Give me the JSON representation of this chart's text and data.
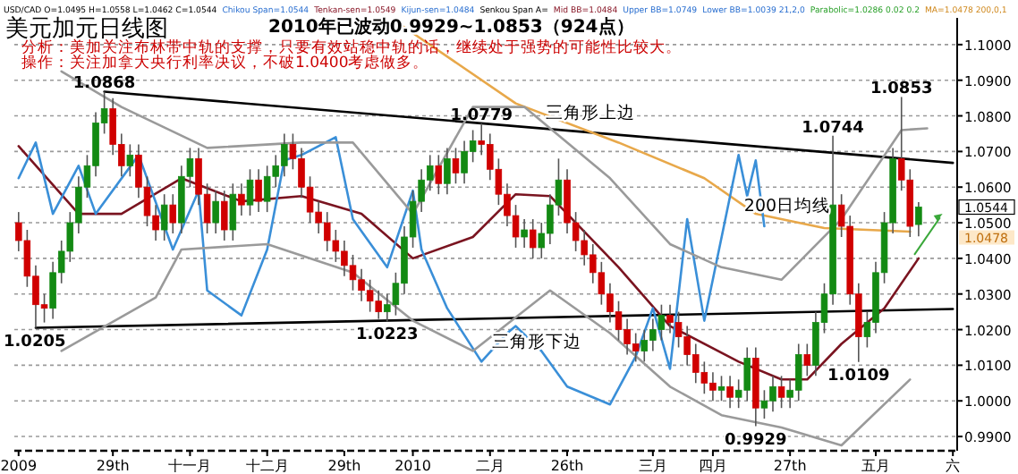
{
  "chart_data": {
    "type": "candlestick",
    "title": "美元加元日线图",
    "subtitle": "2010年已波动0.9929~1.0853（924点）",
    "categories": [
      "2009",
      null,
      null,
      null,
      null,
      null,
      null,
      null,
      null,
      null,
      null,
      "29th",
      null,
      null,
      null,
      null,
      null,
      null,
      null,
      null,
      "十一月",
      null,
      null,
      null,
      null,
      null,
      null,
      null,
      null,
      "十二月",
      null,
      null,
      null,
      null,
      null,
      null,
      null,
      null,
      "29th",
      null,
      null,
      null,
      null,
      null,
      null,
      null,
      "2010",
      null,
      null,
      null,
      null,
      null,
      null,
      null,
      null,
      "二月",
      null,
      null,
      null,
      null,
      null,
      null,
      null,
      null,
      "26th",
      null,
      null,
      null,
      null,
      null,
      null,
      null,
      null,
      null,
      "三月",
      null,
      null,
      null,
      null,
      null,
      null,
      "四月",
      null,
      null,
      null,
      null,
      null,
      null,
      null,
      null,
      "27th",
      null,
      null,
      null,
      null,
      null,
      null,
      null,
      null,
      null,
      "五月",
      null,
      null,
      null,
      null,
      null,
      null,
      null,
      null,
      "六"
    ],
    "ohlc": [
      [
        1.05,
        1.053,
        1.042,
        1.045
      ],
      [
        1.045,
        1.048,
        1.032,
        1.035
      ],
      [
        1.035,
        1.038,
        1.0205,
        1.027
      ],
      [
        1.027,
        1.03,
        1.022,
        1.026
      ],
      [
        1.026,
        1.039,
        1.023,
        1.036
      ],
      [
        1.036,
        1.045,
        1.033,
        1.042
      ],
      [
        1.042,
        1.053,
        1.039,
        1.05
      ],
      [
        1.05,
        1.063,
        1.047,
        1.06
      ],
      [
        1.06,
        1.069,
        1.057,
        1.066
      ],
      [
        1.066,
        1.081,
        1.063,
        1.078
      ],
      [
        1.078,
        1.0868,
        1.075,
        1.082
      ],
      [
        1.082,
        1.085,
        1.069,
        1.072
      ],
      [
        1.072,
        1.075,
        1.063,
        1.066
      ],
      [
        1.066,
        1.072,
        1.063,
        1.069
      ],
      [
        1.069,
        1.072,
        1.057,
        1.06
      ],
      [
        1.06,
        1.063,
        1.049,
        1.052
      ],
      [
        1.052,
        1.055,
        1.045,
        1.048
      ],
      [
        1.048,
        1.058,
        1.045,
        1.055
      ],
      [
        1.055,
        1.058,
        1.047,
        1.05
      ],
      [
        1.05,
        1.066,
        1.047,
        1.063
      ],
      [
        1.063,
        1.071,
        1.06,
        1.068
      ],
      [
        1.068,
        1.071,
        1.055,
        1.058
      ],
      [
        1.058,
        1.061,
        1.047,
        1.05
      ],
      [
        1.05,
        1.059,
        1.047,
        1.056
      ],
      [
        1.056,
        1.059,
        1.045,
        1.048
      ],
      [
        1.048,
        1.061,
        1.045,
        1.058
      ],
      [
        1.058,
        1.061,
        1.052,
        1.055
      ],
      [
        1.055,
        1.065,
        1.052,
        1.062
      ],
      [
        1.062,
        1.065,
        1.053,
        1.056
      ],
      [
        1.056,
        1.066,
        1.053,
        1.063
      ],
      [
        1.063,
        1.069,
        1.06,
        1.066
      ],
      [
        1.066,
        1.075,
        1.063,
        1.072
      ],
      [
        1.072,
        1.075,
        1.065,
        1.068
      ],
      [
        1.068,
        1.071,
        1.057,
        1.06
      ],
      [
        1.06,
        1.063,
        1.05,
        1.053
      ],
      [
        1.053,
        1.056,
        1.047,
        1.05
      ],
      [
        1.05,
        1.053,
        1.042,
        1.045
      ],
      [
        1.045,
        1.048,
        1.039,
        1.042
      ],
      [
        1.042,
        1.045,
        1.035,
        1.038
      ],
      [
        1.038,
        1.041,
        1.031,
        1.034
      ],
      [
        1.034,
        1.037,
        1.028,
        1.031
      ],
      [
        1.031,
        1.034,
        1.025,
        1.028
      ],
      [
        1.028,
        1.031,
        1.023,
        1.025
      ],
      [
        1.025,
        1.03,
        1.0223,
        1.027
      ],
      [
        1.027,
        1.036,
        1.024,
        1.033
      ],
      [
        1.033,
        1.049,
        1.03,
        1.046
      ],
      [
        1.046,
        1.059,
        1.043,
        1.056
      ],
      [
        1.056,
        1.065,
        1.053,
        1.062
      ],
      [
        1.062,
        1.069,
        1.059,
        1.066
      ],
      [
        1.066,
        1.069,
        1.058,
        1.061
      ],
      [
        1.061,
        1.071,
        1.058,
        1.068
      ],
      [
        1.068,
        1.071,
        1.061,
        1.064
      ],
      [
        1.064,
        1.073,
        1.061,
        1.07
      ],
      [
        1.07,
        1.076,
        1.067,
        1.073
      ],
      [
        1.073,
        1.0779,
        1.069,
        1.072
      ],
      [
        1.072,
        1.075,
        1.062,
        1.065
      ],
      [
        1.065,
        1.068,
        1.055,
        1.058
      ],
      [
        1.058,
        1.061,
        1.049,
        1.052
      ],
      [
        1.052,
        1.055,
        1.043,
        1.046
      ],
      [
        1.046,
        1.051,
        1.043,
        1.048
      ],
      [
        1.048,
        1.051,
        1.04,
        1.043
      ],
      [
        1.043,
        1.05,
        1.04,
        1.047
      ],
      [
        1.047,
        1.058,
        1.044,
        1.055
      ],
      [
        1.055,
        1.068,
        1.052,
        1.062
      ],
      [
        1.062,
        1.065,
        1.047,
        1.05
      ],
      [
        1.05,
        1.053,
        1.042,
        1.045
      ],
      [
        1.045,
        1.048,
        1.038,
        1.041
      ],
      [
        1.041,
        1.044,
        1.033,
        1.036
      ],
      [
        1.036,
        1.039,
        1.027,
        1.03
      ],
      [
        1.03,
        1.033,
        1.022,
        1.025
      ],
      [
        1.025,
        1.028,
        1.017,
        1.02
      ],
      [
        1.02,
        1.023,
        1.013,
        1.016
      ],
      [
        1.016,
        1.019,
        1.011,
        1.014
      ],
      [
        1.014,
        1.02,
        1.011,
        1.017
      ],
      [
        1.017,
        1.023,
        1.014,
        1.02
      ],
      [
        1.02,
        1.027,
        1.017,
        1.024
      ],
      [
        1.024,
        1.027,
        1.019,
        1.022
      ],
      [
        1.022,
        1.025,
        1.015,
        1.018
      ],
      [
        1.018,
        1.021,
        1.01,
        1.013
      ],
      [
        1.013,
        1.016,
        1.005,
        1.008
      ],
      [
        1.008,
        1.011,
        1.002,
        1.005
      ],
      [
        1.005,
        1.008,
        1.0,
        1.003
      ],
      [
        1.003,
        1.007,
        1.0,
        1.004
      ],
      [
        1.004,
        1.007,
        0.998,
        1.001
      ],
      [
        1.001,
        1.006,
        0.998,
        1.003
      ],
      [
        1.003,
        1.015,
        1.0,
        1.012
      ],
      [
        1.012,
        1.015,
        0.9929,
        0.998
      ],
      [
        0.998,
        1.003,
        0.995,
        1.0
      ],
      [
        1.0,
        1.007,
        0.997,
        1.004
      ],
      [
        1.004,
        1.007,
        0.998,
        1.001
      ],
      [
        1.001,
        1.006,
        0.998,
        1.003
      ],
      [
        1.003,
        1.016,
        1.0,
        1.013
      ],
      [
        1.013,
        1.016,
        1.007,
        1.01
      ],
      [
        1.01,
        1.025,
        1.007,
        1.022
      ],
      [
        1.022,
        1.033,
        1.019,
        1.03
      ],
      [
        1.03,
        1.0744,
        1.027,
        1.055
      ],
      [
        1.055,
        1.058,
        1.046,
        1.049
      ],
      [
        1.049,
        1.052,
        1.027,
        1.03
      ],
      [
        1.03,
        1.033,
        1.0109,
        1.018
      ],
      [
        1.018,
        1.025,
        1.015,
        1.022
      ],
      [
        1.022,
        1.039,
        1.019,
        1.036
      ],
      [
        1.036,
        1.053,
        1.033,
        1.05
      ],
      [
        1.05,
        1.071,
        1.047,
        1.068
      ],
      [
        1.068,
        1.0853,
        1.059,
        1.062
      ],
      [
        1.062,
        1.065,
        1.046,
        1.049
      ],
      [
        1.0495,
        1.0558,
        1.0462,
        1.0544
      ],
      null,
      null,
      null,
      null
    ],
    "series": [
      {
        "type": "line",
        "color": "#000000",
        "values": [
          null,
          null,
          1.0205,
          null,
          null,
          null,
          null,
          null,
          null,
          null,
          null,
          null,
          null,
          null,
          null,
          null,
          null,
          null,
          null,
          null,
          null,
          null,
          null,
          null,
          null,
          null,
          null,
          null,
          null,
          null,
          null,
          null,
          null,
          null,
          null,
          null,
          null,
          null,
          null,
          null,
          null,
          null,
          null,
          null,
          null,
          null,
          null,
          null,
          null,
          null,
          null,
          null,
          null,
          null,
          null,
          null,
          null,
          null,
          null,
          null,
          null,
          null,
          null,
          null,
          null,
          null,
          null,
          null,
          null,
          null,
          null,
          null,
          null,
          null,
          null,
          null,
          null,
          null,
          null,
          null,
          null,
          null,
          null,
          null,
          null,
          null,
          null,
          null,
          null,
          null,
          null,
          null,
          null,
          null,
          null,
          null,
          null,
          null,
          null,
          null,
          null,
          null,
          null,
          null,
          null,
          null,
          null,
          null,
          null,
          1.0258
        ]
      },
      {
        "type": "line",
        "color": "#000000",
        "values": [
          null,
          null,
          null,
          null,
          null,
          null,
          null,
          null,
          null,
          null,
          1.0868,
          null,
          null,
          null,
          null,
          null,
          null,
          null,
          null,
          null,
          null,
          null,
          null,
          null,
          null,
          null,
          null,
          null,
          null,
          null,
          null,
          null,
          null,
          null,
          null,
          null,
          null,
          null,
          null,
          null,
          null,
          null,
          null,
          null,
          null,
          null,
          null,
          null,
          null,
          null,
          null,
          null,
          null,
          null,
          null,
          null,
          null,
          null,
          null,
          null,
          null,
          null,
          null,
          null,
          null,
          null,
          null,
          null,
          null,
          null,
          null,
          null,
          null,
          null,
          null,
          null,
          null,
          null,
          null,
          null,
          null,
          null,
          null,
          null,
          null,
          null,
          null,
          null,
          null,
          null,
          null,
          null,
          null,
          null,
          null,
          null,
          null,
          null,
          null,
          null,
          null,
          null,
          null,
          null,
          null,
          null,
          null,
          null,
          null,
          1.0668
        ]
      },
      {
        "type": "line",
        "color": "#e8a84a",
        "values": [
          null,
          null,
          null,
          null,
          null,
          null,
          null,
          null,
          null,
          null,
          null,
          null,
          null,
          null,
          null,
          null,
          null,
          null,
          null,
          null,
          null,
          null,
          null,
          null,
          null,
          null,
          null,
          null,
          null,
          null,
          null,
          null,
          null,
          null,
          null,
          null,
          null,
          null,
          null,
          null,
          null,
          null,
          null,
          null,
          1.1065,
          null,
          null,
          null,
          null,
          null,
          null,
          null,
          null,
          null,
          null,
          null,
          null,
          null,
          1.0835,
          null,
          null,
          null,
          null,
          null,
          null,
          null,
          null,
          null,
          null,
          null,
          1.0725,
          null,
          null,
          null,
          null,
          null,
          null,
          null,
          null,
          null,
          1.0625,
          null,
          null,
          null,
          null,
          null,
          1.0525,
          null,
          null,
          null,
          null,
          null,
          null,
          null,
          1.0485,
          null,
          null,
          null,
          null,
          null,
          null,
          null,
          null,
          null,
          1.0475,
          null,
          null,
          null,
          null,
          null
        ]
      },
      {
        "type": "line",
        "color": "#7a1420",
        "values": [
          1.0715,
          null,
          null,
          null,
          null,
          null,
          null,
          1.0525,
          null,
          null,
          null,
          null,
          1.0525,
          null,
          null,
          null,
          null,
          null,
          null,
          1.0625,
          null,
          null,
          null,
          null,
          null,
          null,
          1.056,
          null,
          null,
          null,
          null,
          null,
          null,
          1.0575,
          null,
          null,
          null,
          null,
          null,
          null,
          1.0525,
          null,
          null,
          null,
          null,
          null,
          1.04,
          null,
          null,
          null,
          null,
          null,
          null,
          1.046,
          null,
          null,
          null,
          null,
          1.058,
          null,
          null,
          null,
          1.0575,
          null,
          null,
          null,
          null,
          null,
          null,
          null,
          1.0375,
          null,
          null,
          null,
          null,
          null,
          1.021,
          null,
          null,
          null,
          null,
          null,
          null,
          null,
          1.011,
          null,
          null,
          null,
          null,
          1.006,
          null,
          null,
          1.006,
          null,
          null,
          null,
          1.016,
          null,
          null,
          null,
          null,
          1.026,
          null,
          null,
          null,
          1.04,
          null,
          null,
          null,
          null
        ]
      },
      {
        "type": "line",
        "color": "#3a8fd8",
        "values": [
          1.0625,
          null,
          1.0725,
          null,
          1.0525,
          null,
          null,
          1.066,
          null,
          1.0525,
          null,
          null,
          null,
          null,
          1.069,
          null,
          null,
          null,
          1.0425,
          null,
          null,
          1.059,
          1.031,
          null,
          null,
          null,
          1.024,
          null,
          null,
          1.0425,
          null,
          1.0675,
          null,
          1.069,
          null,
          null,
          null,
          1.074,
          null,
          1.051,
          null,
          null,
          null,
          1.0375,
          null,
          null,
          1.059,
          1.0425,
          null,
          null,
          1.026,
          null,
          null,
          null,
          1.011,
          null,
          null,
          1.019,
          1.021,
          null,
          null,
          1.014,
          null,
          null,
          1.004,
          null,
          null,
          null,
          null,
          0.999,
          null,
          null,
          1.0125,
          null,
          1.026,
          null,
          1.009,
          null,
          1.051,
          null,
          1.0225,
          null,
          null,
          null,
          1.069,
          1.0575,
          1.0675,
          1.049,
          null,
          null,
          null,
          null,
          null,
          null,
          null,
          null,
          null,
          null,
          null,
          null,
          null,
          null,
          null,
          null,
          null,
          null,
          null,
          null,
          null,
          null
        ]
      },
      {
        "type": "line",
        "color": "#9a9a9a",
        "values": [
          null,
          null,
          null,
          null,
          null,
          1.0925,
          null,
          null,
          null,
          null,
          null,
          null,
          1.0825,
          null,
          null,
          null,
          null,
          null,
          null,
          null,
          null,
          null,
          1.071,
          null,
          null,
          null,
          null,
          null,
          null,
          null,
          null,
          null,
          null,
          1.0725,
          null,
          null,
          null,
          null,
          null,
          1.0725,
          null,
          null,
          null,
          null,
          null,
          null,
          1.0525,
          null,
          null,
          null,
          null,
          null,
          null,
          1.0825,
          null,
          null,
          null,
          null,
          null,
          1.0825,
          null,
          null,
          null,
          null,
          null,
          null,
          null,
          null,
          null,
          1.0625,
          null,
          null,
          null,
          null,
          null,
          null,
          1.044,
          null,
          null,
          null,
          null,
          null,
          1.0375,
          null,
          null,
          null,
          null,
          null,
          null,
          1.034,
          null,
          null,
          null,
          null,
          null,
          null,
          1.051,
          null,
          null,
          null,
          null,
          null,
          null,
          1.076,
          null,
          null,
          1.0765,
          null,
          null,
          null
        ]
      },
      {
        "type": "line",
        "color": "#9a9a9a",
        "values": [
          null,
          null,
          null,
          null,
          null,
          1.014,
          null,
          null,
          null,
          null,
          null,
          null,
          null,
          null,
          null,
          null,
          1.029,
          null,
          null,
          1.0425,
          null,
          null,
          null,
          null,
          null,
          null,
          null,
          null,
          null,
          1.044,
          null,
          null,
          null,
          null,
          null,
          null,
          null,
          null,
          null,
          1.036,
          null,
          null,
          null,
          null,
          null,
          null,
          1.0225,
          null,
          null,
          null,
          null,
          null,
          null,
          1.014,
          null,
          null,
          null,
          null,
          null,
          null,
          null,
          null,
          1.031,
          null,
          null,
          null,
          null,
          null,
          null,
          1.019,
          null,
          null,
          null,
          null,
          null,
          null,
          1.004,
          null,
          null,
          null,
          null,
          null,
          0.996,
          null,
          null,
          null,
          null,
          null,
          null,
          0.9925,
          null,
          null,
          null,
          null,
          null,
          null,
          0.9875,
          null,
          null,
          null,
          null,
          null,
          null,
          null,
          1.006,
          null,
          null,
          null,
          null,
          null
        ]
      }
    ],
    "ylim": [
      0.986,
      1.1075
    ],
    "yticks": [
      {
        "value": 0.99,
        "label": "0.9900"
      },
      {
        "value": 1.0,
        "label": "1.0000"
      },
      {
        "value": 1.01,
        "label": "1.0100"
      },
      {
        "value": 1.02,
        "label": "1.0200"
      },
      {
        "value": 1.03,
        "label": "1.0300"
      },
      {
        "value": 1.04,
        "label": "1.0400"
      },
      {
        "value": 1.05,
        "label": "1.0500"
      },
      {
        "value": 1.06,
        "label": "1.0600"
      },
      {
        "value": 1.07,
        "label": "1.0700"
      },
      {
        "value": 1.08,
        "label": "1.0800"
      },
      {
        "value": 1.09,
        "label": "1.0900"
      },
      {
        "value": 1.1,
        "label": "1.1000"
      }
    ],
    "grid": "y",
    "annotations": [
      "USD/CAD O=1.0495 H=1.0558 L=1.0462 C=1.0544",
      "Chikou Span=1.0544",
      "Tenkan-sen=1.0549",
      "Kijun-sen=1.0484",
      "Senkou Span A=",
      "Mid BB=1.0484",
      "Upper BB=1.0749",
      "Lower BB=1.0039 21,2,0",
      "Parabolic=1.0286 0.02 0.2",
      "MA=1.0478 200,0,1",
      "分析：美加关注布林带中轨的支撑，只要有效站稳中轨的话，继续处于强势的可能性比较大。",
      "操作：关注加拿大央行利率决议，不破1.0400考虑做多。",
      {
        "text": "1.0868",
        "y": 1.0868
      },
      {
        "text": "1.0205",
        "y": 1.0205
      },
      {
        "text": "1.0223",
        "y": 1.0223
      },
      {
        "text": "1.0779",
        "y": 1.0779
      },
      {
        "text": "0.9929",
        "y": 0.9929
      },
      {
        "text": "1.0744",
        "y": 1.0744
      },
      {
        "text": "1.0109",
        "y": 1.0109
      },
      {
        "text": "1.0853",
        "y": 1.0853
      },
      "三角形上边",
      "三角形下边",
      "200日均线",
      "1.0544",
      "1.0478"
    ]
  }
}
